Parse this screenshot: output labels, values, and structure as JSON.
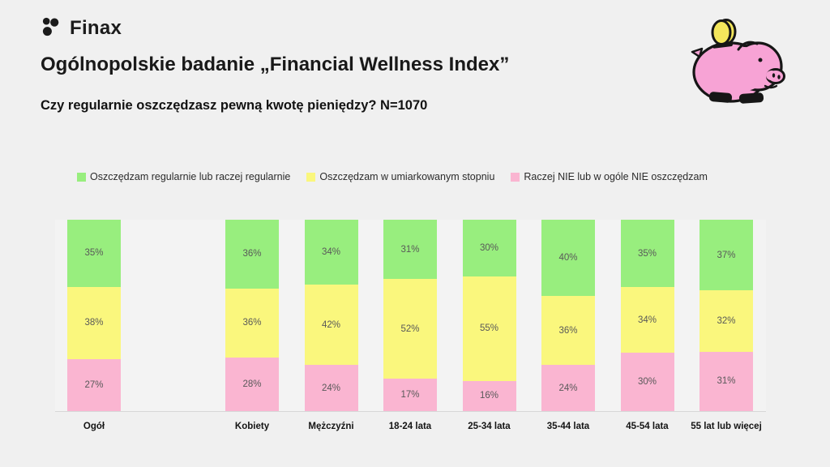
{
  "brand": {
    "name": "Finax"
  },
  "header": {
    "title": "Ogólnopolskie badanie „Financial Wellness Index”",
    "subtitle": "Czy regularnie oszczędzasz pewną kwotę pieniędzy? N=1070"
  },
  "colors": {
    "background": "#f0f0f0",
    "green": "#98ee7e",
    "yellow": "#faf77d",
    "pink": "#fab5d1",
    "value_label": "#595959",
    "axis_line": "#d7d7d7",
    "pig_pink": "#f7a3d5",
    "coin_yellow": "#f4e75c",
    "outline_black": "#161616"
  },
  "chart_data": {
    "type": "bar",
    "stacked": true,
    "percent_total": true,
    "value_suffix": "%",
    "legend_position": "top",
    "grid": false,
    "categories": [
      "Ogół",
      "Kobiety",
      "Mężczyźni",
      "18-24 lata",
      "25-34 lata",
      "35-44 lata",
      "45-54 lata",
      "55 lat lub więcej"
    ],
    "series": [
      {
        "name": "Oszczędzam regularnie lub raczej regularnie",
        "color_key": "green",
        "values": [
          35,
          36,
          34,
          31,
          30,
          40,
          35,
          37
        ]
      },
      {
        "name": "Oszczędzam w umiarkowanym stopniu",
        "color_key": "yellow",
        "values": [
          38,
          36,
          42,
          52,
          55,
          36,
          34,
          32
        ]
      },
      {
        "name": "Raczej NIE lub w ogóle NIE oszczędzam",
        "color_key": "pink",
        "values": [
          27,
          28,
          24,
          17,
          16,
          24,
          30,
          31
        ]
      }
    ]
  }
}
